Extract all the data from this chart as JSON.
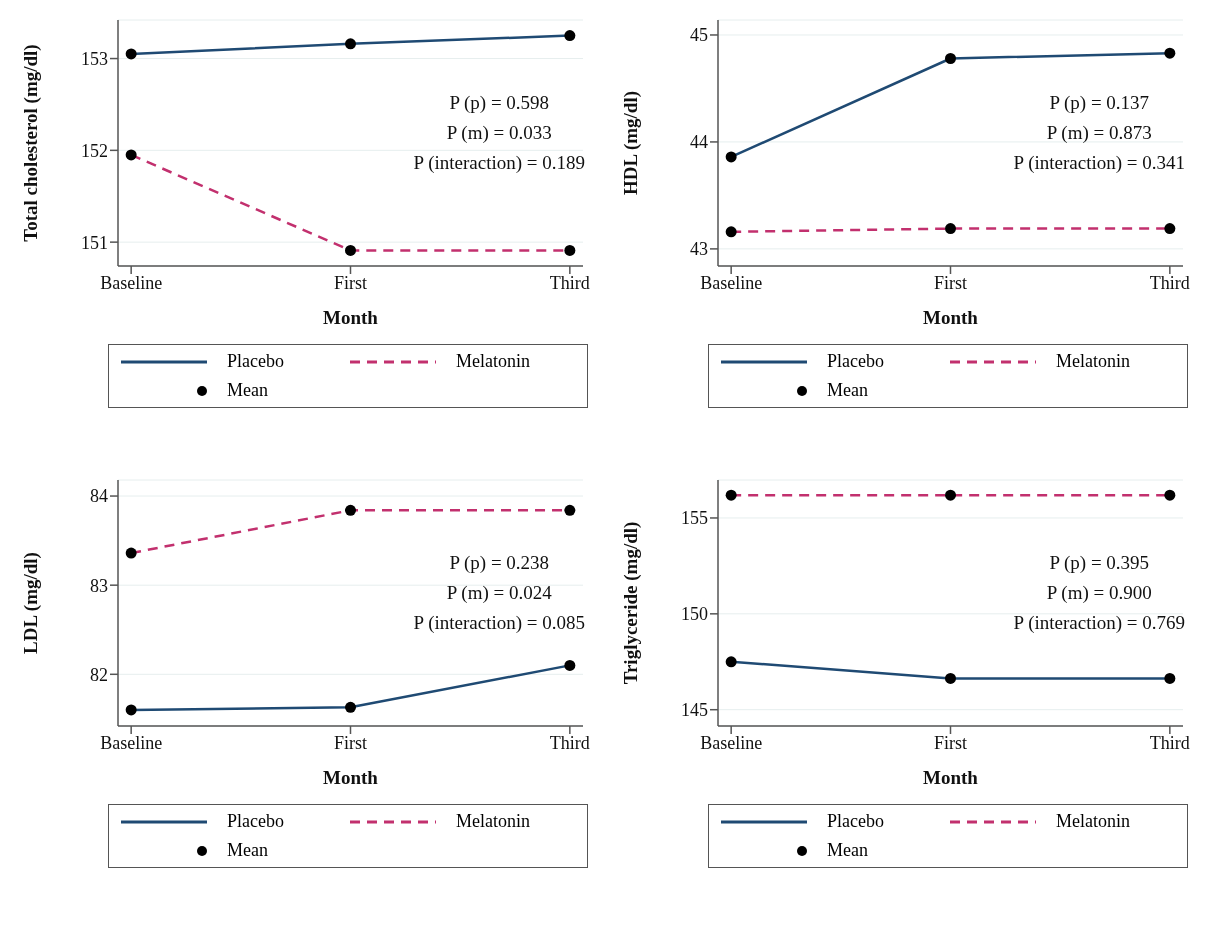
{
  "chart_data": [
    {
      "type": "line",
      "xlabel": "Month",
      "ylabel": "Total cholesterol (mg/dl)",
      "categories": [
        "Baseline",
        "First",
        "Third"
      ],
      "ylim": [
        150.74,
        153.42
      ],
      "yticks": [
        151,
        152,
        153
      ],
      "grid": "y",
      "legend": "bottom",
      "annotations": [
        "P (p) = 0.598",
        "P (m) = 0.033",
        "P (interaction) = 0.189"
      ],
      "series": [
        {
          "name": "Placebo",
          "color": "#1f4a73",
          "line_style": "solid",
          "values": [
            153.05,
            153.16,
            153.25
          ]
        },
        {
          "name": "Melatonin",
          "color": "#c2306e",
          "line_style": "dashed",
          "values": [
            151.95,
            150.91,
            150.91
          ]
        },
        {
          "name": "Mean",
          "type": "scatter",
          "marker": "circle",
          "color": "#000000",
          "x": [
            "Baseline",
            "First",
            "Third",
            "Baseline",
            "First",
            "Third"
          ],
          "values": [
            153.05,
            153.16,
            153.25,
            151.95,
            150.91,
            150.91
          ]
        }
      ]
    },
    {
      "type": "line",
      "xlabel": "Month",
      "ylabel": "HDL (mg/dl)",
      "categories": [
        "Baseline",
        "First",
        "Third"
      ],
      "ylim": [
        42.84,
        45.14
      ],
      "yticks": [
        43,
        44,
        45
      ],
      "grid": "y",
      "legend": "bottom",
      "annotations": [
        "P (p) = 0.137",
        "P (m) = 0.873",
        "P (interaction) = 0.341"
      ],
      "series": [
        {
          "name": "Placebo",
          "color": "#1f4a73",
          "line_style": "solid",
          "values": [
            43.86,
            44.78,
            44.83
          ]
        },
        {
          "name": "Melatonin",
          "color": "#c2306e",
          "line_style": "dashed",
          "values": [
            43.16,
            43.19,
            43.19
          ]
        },
        {
          "name": "Mean",
          "type": "scatter",
          "marker": "circle",
          "color": "#000000",
          "x": [
            "Baseline",
            "First",
            "Third",
            "Baseline",
            "First",
            "Third"
          ],
          "values": [
            43.86,
            44.78,
            44.83,
            43.16,
            43.19,
            43.19
          ]
        }
      ]
    },
    {
      "type": "line",
      "xlabel": "Month",
      "ylabel": "LDL (mg/dl)",
      "categories": [
        "Baseline",
        "First",
        "Third"
      ],
      "ylim": [
        81.42,
        84.18
      ],
      "yticks": [
        82,
        83,
        84
      ],
      "grid": "y",
      "legend": "bottom",
      "annotations": [
        "P (p) = 0.238",
        "P (m) = 0.024",
        "P (interaction) = 0.085"
      ],
      "series": [
        {
          "name": "Placebo",
          "color": "#1f4a73",
          "line_style": "solid",
          "values": [
            81.6,
            81.63,
            82.1
          ]
        },
        {
          "name": "Melatonin",
          "color": "#c2306e",
          "line_style": "dashed",
          "values": [
            83.36,
            83.84,
            83.84
          ]
        },
        {
          "name": "Mean",
          "type": "scatter",
          "marker": "circle",
          "color": "#000000",
          "x": [
            "Baseline",
            "First",
            "Third",
            "Baseline",
            "First",
            "Third"
          ],
          "values": [
            81.6,
            81.63,
            82.1,
            83.36,
            83.84,
            83.84
          ]
        }
      ]
    },
    {
      "type": "line",
      "xlabel": "Month",
      "ylabel": "Triglyceride (mg/dl)",
      "categories": [
        "Baseline",
        "First",
        "Third"
      ],
      "ylim": [
        144.15,
        156.98
      ],
      "yticks": [
        145,
        150,
        155
      ],
      "grid": "y",
      "legend": "bottom",
      "annotations": [
        "P (p) = 0.395",
        "P (m) = 0.900",
        "P (interaction) = 0.769"
      ],
      "series": [
        {
          "name": "Placebo",
          "color": "#1f4a73",
          "line_style": "solid",
          "values": [
            147.5,
            146.63,
            146.63
          ]
        },
        {
          "name": "Melatonin",
          "color": "#c2306e",
          "line_style": "dashed",
          "values": [
            156.19,
            156.19,
            156.19
          ]
        },
        {
          "name": "Mean",
          "type": "scatter",
          "marker": "circle",
          "color": "#000000",
          "x": [
            "Baseline",
            "First",
            "Third",
            "Baseline",
            "First",
            "Third"
          ],
          "values": [
            147.5,
            146.63,
            146.63,
            156.19,
            156.19,
            156.19
          ]
        }
      ]
    }
  ]
}
